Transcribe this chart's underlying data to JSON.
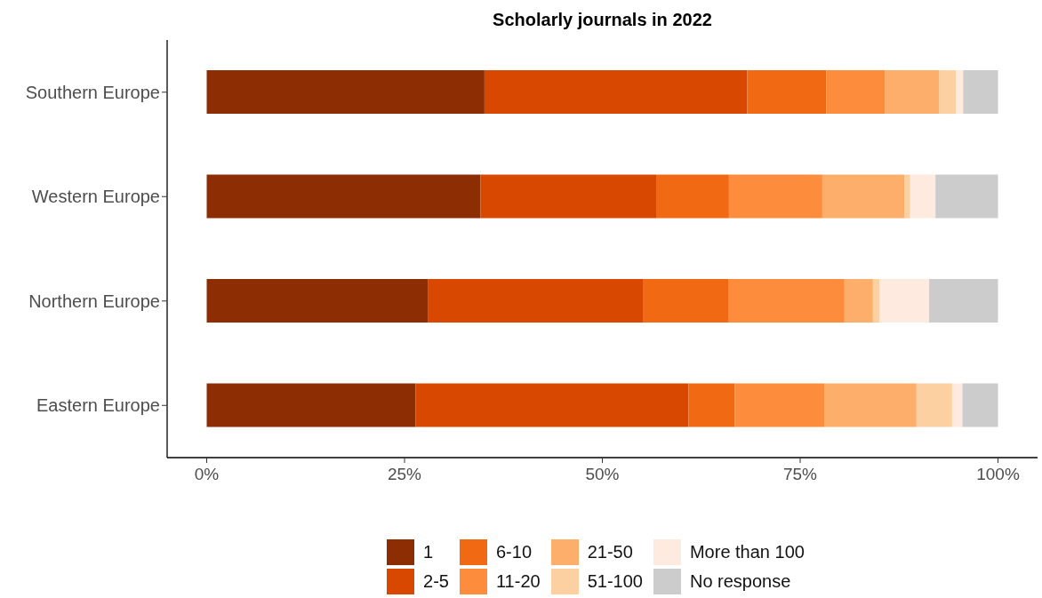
{
  "chart_data": {
    "type": "bar",
    "orientation": "horizontal",
    "stacked": true,
    "title": "Scholarly journals in 2022",
    "categories": [
      "Southern Europe",
      "Western Europe",
      "Northern Europe",
      "Eastern Europe"
    ],
    "series": [
      {
        "name": "1",
        "color": "#8c2d04",
        "values": [
          35.1,
          34.6,
          28.0,
          26.4
        ]
      },
      {
        "name": "2-5",
        "color": "#d94801",
        "values": [
          33.2,
          22.2,
          27.2,
          34.5
        ]
      },
      {
        "name": "6-10",
        "color": "#f16913",
        "values": [
          10.0,
          9.2,
          10.7,
          5.8
        ]
      },
      {
        "name": "11-20",
        "color": "#fd8d3c",
        "values": [
          7.4,
          11.8,
          14.7,
          11.4
        ]
      },
      {
        "name": "21-50",
        "color": "#fdae6b",
        "values": [
          6.9,
          10.4,
          3.6,
          11.6
        ]
      },
      {
        "name": "51-100",
        "color": "#fdd0a2",
        "values": [
          2.1,
          0.7,
          0.8,
          4.5
        ]
      },
      {
        "name": "More than 100",
        "color": "#feeade",
        "values": [
          0.9,
          3.2,
          6.3,
          1.3
        ]
      },
      {
        "name": "No response",
        "color": "#cccccc",
        "values": [
          4.4,
          7.9,
          8.7,
          4.5
        ]
      }
    ],
    "xlim": [
      -5,
      105
    ],
    "xticks": [
      {
        "value": 0,
        "label": "0%"
      },
      {
        "value": 25,
        "label": "25%"
      },
      {
        "value": 50,
        "label": "50%"
      },
      {
        "value": 75,
        "label": "75%"
      },
      {
        "value": 100,
        "label": "100%"
      }
    ],
    "grid": false,
    "legend": "bottom"
  }
}
